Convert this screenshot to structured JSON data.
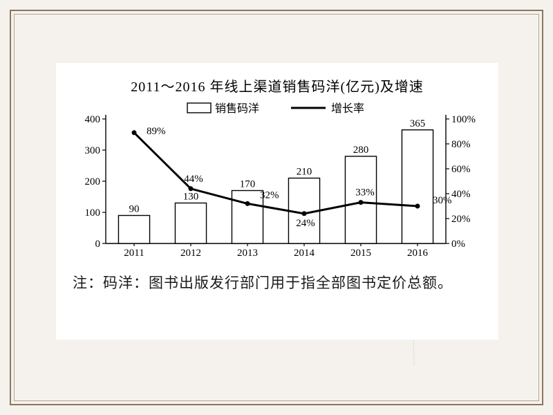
{
  "title": "2011～2016 年线上渠道销售码洋(亿元)及增速",
  "legend": {
    "sales": "销售码洋",
    "growth": "增长率"
  },
  "chart": {
    "type": "bar+line",
    "categories": [
      "2011",
      "2012",
      "2013",
      "2014",
      "2015",
      "2016"
    ],
    "bar_values": [
      90,
      130,
      170,
      210,
      280,
      365
    ],
    "growth_values": [
      89,
      44,
      32,
      24,
      33,
      30
    ],
    "growth_labels": [
      "89%",
      "44%",
      "32%",
      "24%",
      "33%",
      "30%"
    ],
    "y_left": {
      "min": 0,
      "max": 400,
      "step": 100
    },
    "y_right": {
      "min": 0,
      "max": 100,
      "step": 20,
      "suffix": "%"
    },
    "bar_color": "#ffffff",
    "bar_border": "#000000",
    "line_color": "#000000",
    "background": "#ffffff",
    "axis_color": "#000000",
    "font_size_axis": 15,
    "font_size_legend": 16,
    "font_size_title": 20,
    "bar_width_ratio": 0.55
  },
  "note": "注：码洋：图书出版发行部门用于指全部图书定价总额。",
  "frame_colors": {
    "outer": "#8a7560",
    "inner": "#b5a690",
    "bg": "#f5f2ed"
  }
}
